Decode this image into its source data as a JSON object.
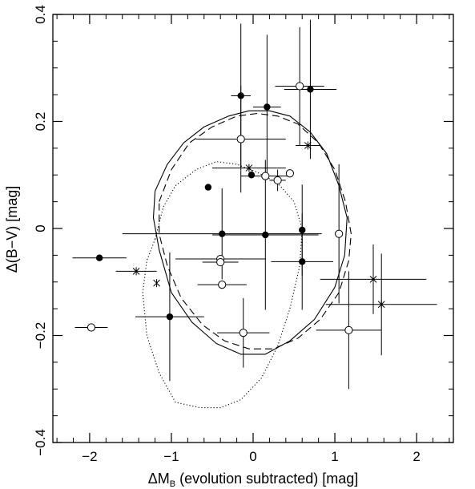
{
  "chart_data": {
    "type": "scatter",
    "title": "",
    "xlabel": "ΔM",
    "xlabel_sub": "B",
    "xlabel_rest": " (evolution subtracted) [mag]",
    "ylabel": "Δ(B−V) [mag]",
    "xlim": [
      -2.45,
      2.45
    ],
    "ylim": [
      -0.4,
      0.4
    ],
    "x_ticks": [
      -2,
      -1,
      0,
      1,
      2
    ],
    "x_tick_labels": [
      "−2",
      "−1",
      "0",
      "1",
      "2"
    ],
    "y_ticks": [
      -0.4,
      -0.2,
      0,
      0.2,
      0.4
    ],
    "y_tick_labels": [
      "−0.4",
      "−0.2",
      "0",
      "0.2",
      "0.4"
    ],
    "x_minor_step": 0.2,
    "y_minor_step": 0.05,
    "legend": "none",
    "series": [
      {
        "marker": "filled-circle",
        "points": [
          {
            "x": -1.88,
            "y": -0.055,
            "xerr": 0.33,
            "yerr": 0
          },
          {
            "x": -1.02,
            "y": -0.165,
            "xerr": 0.42,
            "yerr": 0.12
          },
          {
            "x": -0.55,
            "y": 0.077,
            "xerr": 0,
            "yerr": 0
          },
          {
            "x": -0.38,
            "y": -0.01,
            "xerr": 1.22,
            "yerr": 0.085
          },
          {
            "x": -0.15,
            "y": 0.248,
            "xerr": 0.12,
            "yerr": 0.135
          },
          {
            "x": -0.02,
            "y": 0.1,
            "xerr": 0,
            "yerr": 0
          },
          {
            "x": 0.15,
            "y": -0.012,
            "xerr": 0.65,
            "yerr": 0.14
          },
          {
            "x": 0.17,
            "y": 0.227,
            "xerr": 0.17,
            "yerr": 0.135
          },
          {
            "x": 0.6,
            "y": -0.003,
            "xerr": 0,
            "yerr": 0.085
          },
          {
            "x": 0.6,
            "y": -0.062,
            "xerr": 0.38,
            "yerr": 0.09
          },
          {
            "x": 0.7,
            "y": 0.26,
            "xerr": 0.32,
            "yerr": 0.13
          }
        ]
      },
      {
        "marker": "open-circle",
        "points": [
          {
            "x": -1.98,
            "y": -0.185,
            "xerr": 0.2,
            "yerr": 0
          },
          {
            "x": -0.4,
            "y": -0.057,
            "xerr": 0.55,
            "yerr": 0
          },
          {
            "x": -0.4,
            "y": -0.063,
            "xerr": 0.22,
            "yerr": 0
          },
          {
            "x": -0.38,
            "y": -0.105,
            "xerr": 0.3,
            "yerr": 0
          },
          {
            "x": -0.15,
            "y": 0.167,
            "xerr": 0.55,
            "yerr": 0.1
          },
          {
            "x": -0.12,
            "y": -0.195,
            "xerr": 0.32,
            "yerr": 0.065
          },
          {
            "x": 0.15,
            "y": 0.098,
            "xerr": 0.3,
            "yerr": 0
          },
          {
            "x": 0.3,
            "y": 0.09,
            "xerr": 0.1,
            "yerr": 0.02
          },
          {
            "x": 0.45,
            "y": 0.103,
            "xerr": 0,
            "yerr": 0
          },
          {
            "x": 0.57,
            "y": 0.266,
            "xerr": 0.3,
            "yerr": 0.11
          },
          {
            "x": 1.05,
            "y": -0.01,
            "xerr": 0,
            "yerr": 0.13
          },
          {
            "x": 1.17,
            "y": -0.19,
            "xerr": 0.4,
            "yerr": 0.11
          }
        ]
      },
      {
        "marker": "cross",
        "points": [
          {
            "x": -1.43,
            "y": -0.08,
            "xerr": 0.25,
            "yerr": 0
          },
          {
            "x": -1.18,
            "y": -0.102,
            "xerr": 0,
            "yerr": 0
          },
          {
            "x": -0.05,
            "y": 0.113,
            "xerr": 0.45,
            "yerr": 0
          },
          {
            "x": 0.67,
            "y": 0.155,
            "xerr": 0.15,
            "yerr": 0
          },
          {
            "x": 1.47,
            "y": -0.095,
            "xerr": 0.65,
            "yerr": 0.065
          },
          {
            "x": 1.57,
            "y": -0.142,
            "xerr": 0.68,
            "yerr": 0.095
          }
        ]
      }
    ],
    "contours": [
      {
        "style": "solid",
        "points": [
          [
            -1.2,
            0.07
          ],
          [
            -1.05,
            0.12
          ],
          [
            -0.85,
            0.16
          ],
          [
            -0.6,
            0.19
          ],
          [
            -0.3,
            0.21
          ],
          [
            -0.05,
            0.22
          ],
          [
            0.2,
            0.22
          ],
          [
            0.45,
            0.21
          ],
          [
            0.7,
            0.18
          ],
          [
            0.9,
            0.14
          ],
          [
            1.05,
            0.08
          ],
          [
            1.15,
            0.02
          ],
          [
            1.12,
            -0.05
          ],
          [
            1.0,
            -0.11
          ],
          [
            0.75,
            -0.17
          ],
          [
            0.45,
            -0.21
          ],
          [
            0.15,
            -0.235
          ],
          [
            -0.15,
            -0.235
          ],
          [
            -0.45,
            -0.215
          ],
          [
            -0.75,
            -0.175
          ],
          [
            -1.0,
            -0.12
          ],
          [
            -1.15,
            -0.04
          ],
          [
            -1.22,
            0.02
          ],
          [
            -1.2,
            0.07
          ]
        ]
      },
      {
        "style": "dashed",
        "points": [
          [
            -1.15,
            0.05
          ],
          [
            -1.0,
            0.11
          ],
          [
            -0.78,
            0.16
          ],
          [
            -0.5,
            0.19
          ],
          [
            -0.2,
            0.21
          ],
          [
            0.05,
            0.215
          ],
          [
            0.3,
            0.21
          ],
          [
            0.55,
            0.195
          ],
          [
            0.8,
            0.16
          ],
          [
            1.0,
            0.11
          ],
          [
            1.13,
            0.05
          ],
          [
            1.2,
            -0.01
          ],
          [
            1.17,
            -0.06
          ],
          [
            1.05,
            -0.12
          ],
          [
            0.82,
            -0.17
          ],
          [
            0.55,
            -0.205
          ],
          [
            0.25,
            -0.225
          ],
          [
            -0.05,
            -0.225
          ],
          [
            -0.35,
            -0.21
          ],
          [
            -0.62,
            -0.18
          ],
          [
            -0.88,
            -0.13
          ],
          [
            -1.05,
            -0.07
          ],
          [
            -1.15,
            -0.01
          ],
          [
            -1.15,
            0.05
          ]
        ]
      },
      {
        "style": "dotted",
        "points": [
          [
            -1.2,
            -0.02
          ],
          [
            -1.1,
            0.04
          ],
          [
            -0.95,
            0.08
          ],
          [
            -0.7,
            0.11
          ],
          [
            -0.45,
            0.125
          ],
          [
            -0.2,
            0.12
          ],
          [
            0.05,
            0.105
          ],
          [
            0.3,
            0.085
          ],
          [
            0.5,
            0.05
          ],
          [
            0.6,
            0.0
          ],
          [
            0.57,
            -0.07
          ],
          [
            0.45,
            -0.15
          ],
          [
            0.3,
            -0.22
          ],
          [
            0.1,
            -0.28
          ],
          [
            -0.15,
            -0.32
          ],
          [
            -0.4,
            -0.335
          ],
          [
            -0.65,
            -0.335
          ],
          [
            -0.95,
            -0.325
          ],
          [
            -1.15,
            -0.27
          ],
          [
            -1.3,
            -0.2
          ],
          [
            -1.35,
            -0.12
          ],
          [
            -1.3,
            -0.06
          ],
          [
            -1.2,
            -0.02
          ]
        ]
      }
    ]
  }
}
